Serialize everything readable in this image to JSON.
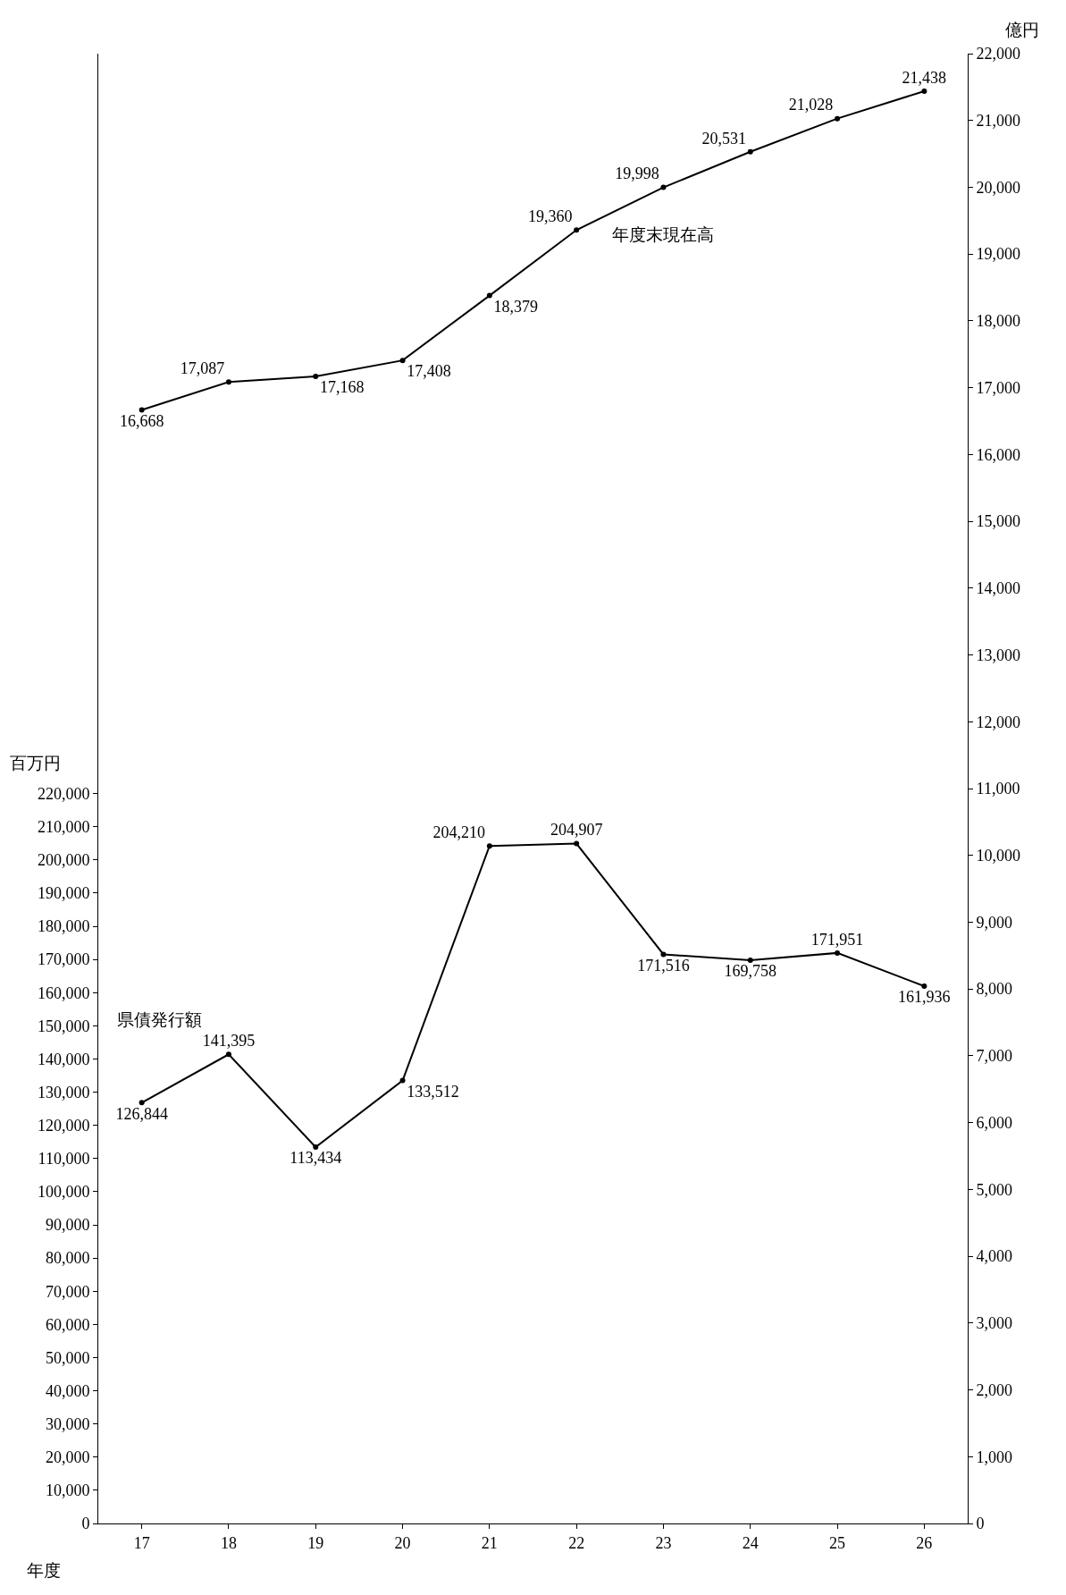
{
  "chart_data": {
    "type": "line",
    "categories": [
      "17",
      "18",
      "19",
      "20",
      "21",
      "22",
      "23",
      "24",
      "25",
      "26"
    ],
    "series": [
      {
        "name": "県債発行額",
        "color": "#000000",
        "values": [
          126844,
          141395,
          113434,
          133512,
          204210,
          204907,
          171516,
          169758,
          171951,
          161936
        ],
        "value_labels": [
          "126,844",
          "141,395",
          "113,434",
          "133,512",
          "204,210",
          "204,907",
          "171,516",
          "169,758",
          "171,951",
          "161,936"
        ]
      },
      {
        "name": "年度末現在高",
        "color": "#000000",
        "axis": "y2",
        "values": [
          16668,
          17087,
          17168,
          17408,
          18379,
          19360,
          19998,
          20531,
          21028,
          21438
        ],
        "value_labels": [
          "16,668",
          "17,087",
          "17,168",
          "17,408",
          "18,379",
          "19,360",
          "19,998",
          "20,531",
          "21,028",
          "21,438"
        ]
      }
    ],
    "xlabel": "年度",
    "ylabel": "百万円",
    "y2label": "億円",
    "ylim": [
      0,
      443000
    ],
    "yticks": [
      0,
      {
        "value": 10000,
        "label": "10,000"
      },
      {
        "value": 20000,
        "label": "20,000"
      },
      {
        "value": 30000,
        "label": "30,000"
      },
      {
        "value": 40000,
        "label": "40,000"
      },
      {
        "value": 50000,
        "label": "50,000"
      },
      {
        "value": 60000,
        "label": "60,000"
      },
      {
        "value": 70000,
        "label": "70,000"
      },
      {
        "value": 80000,
        "label": "80,000"
      },
      {
        "value": 90000,
        "label": "90,000"
      },
      {
        "value": 100000,
        "label": "100,000"
      },
      {
        "value": 110000,
        "label": "110,000"
      },
      {
        "value": 120000,
        "label": "120,000"
      },
      {
        "value": 130000,
        "label": "130,000"
      },
      {
        "value": 140000,
        "label": "140,000"
      },
      {
        "value": 150000,
        "label": "150,000"
      },
      {
        "value": 160000,
        "label": "160,000"
      },
      {
        "value": 170000,
        "label": "170,000"
      },
      {
        "value": 180000,
        "label": "180,000"
      },
      {
        "value": 190000,
        "label": "190,000"
      },
      {
        "value": 200000,
        "label": "200,000"
      },
      {
        "value": 210000,
        "label": "210,000"
      },
      {
        "value": 220000,
        "label": "220,000"
      }
    ],
    "y2lim": [
      0,
      22000
    ],
    "y2ticks": [
      0,
      {
        "value": 1000,
        "label": "1,000"
      },
      {
        "value": 2000,
        "label": "2,000"
      },
      {
        "value": 3000,
        "label": "3,000"
      },
      {
        "value": 4000,
        "label": "4,000"
      },
      {
        "value": 5000,
        "label": "5,000"
      },
      {
        "value": 6000,
        "label": "6,000"
      },
      {
        "value": 7000,
        "label": "7,000"
      },
      {
        "value": 8000,
        "label": "8,000"
      },
      {
        "value": 9000,
        "label": "9,000"
      },
      {
        "value": 10000,
        "label": "10,000"
      },
      {
        "value": 11000,
        "label": "11,000"
      },
      {
        "value": 12000,
        "label": "12,000"
      },
      {
        "value": 13000,
        "label": "13,000"
      },
      {
        "value": 14000,
        "label": "14,000"
      },
      {
        "value": 15000,
        "label": "15,000"
      },
      {
        "value": 16000,
        "label": "16,000"
      },
      {
        "value": 17000,
        "label": "17,000"
      },
      {
        "value": 18000,
        "label": "18,000"
      },
      {
        "value": 19000,
        "label": "19,000"
      },
      {
        "value": 20000,
        "label": "20,000"
      },
      {
        "value": 21000,
        "label": "21,000"
      },
      {
        "value": 22000,
        "label": "22,000"
      }
    ],
    "data_labels": true,
    "marker": "circle",
    "line_style": "solid",
    "grid": false,
    "legend": false
  }
}
